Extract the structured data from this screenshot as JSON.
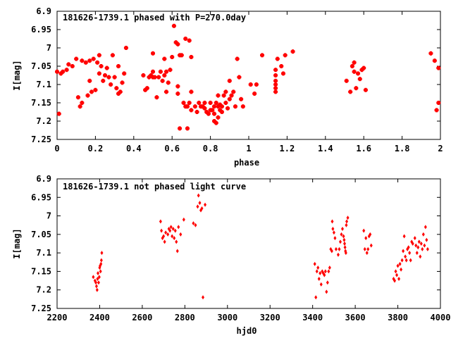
{
  "chart_data": [
    {
      "type": "scatter",
      "title": "181626-1739.1 phased with P=270.0day",
      "xlabel": "phase",
      "ylabel": "I[mag]",
      "xlim": [
        0,
        2
      ],
      "ylim": [
        6.9,
        7.25
      ],
      "y_inverted": true,
      "grid": false,
      "color": "#ff0000",
      "x_ticks": [
        "0",
        "0.2",
        "0.4",
        "0.6",
        "0.8",
        "1",
        "1.2",
        "1.4",
        "1.6",
        "1.8",
        "2"
      ],
      "y_ticks": [
        "6.9",
        "6.95",
        "7",
        "7.05",
        "7.1",
        "7.15",
        "7.2",
        "7.25"
      ],
      "points": [
        [
          0.0,
          7.065
        ],
        [
          0.01,
          7.18
        ],
        [
          0.02,
          7.07
        ],
        [
          0.03,
          7.065
        ],
        [
          0.05,
          7.06
        ],
        [
          0.06,
          7.045
        ],
        [
          0.08,
          7.05
        ],
        [
          0.1,
          7.03
        ],
        [
          0.11,
          7.135
        ],
        [
          0.12,
          7.16
        ],
        [
          0.13,
          7.15
        ],
        [
          0.13,
          7.035
        ],
        [
          0.15,
          7.04
        ],
        [
          0.16,
          7.13
        ],
        [
          0.17,
          7.09
        ],
        [
          0.17,
          7.035
        ],
        [
          0.18,
          7.12
        ],
        [
          0.19,
          7.03
        ],
        [
          0.2,
          7.115
        ],
        [
          0.21,
          7.04
        ],
        [
          0.22,
          7.07
        ],
        [
          0.22,
          7.02
        ],
        [
          0.23,
          7.05
        ],
        [
          0.24,
          7.09
        ],
        [
          0.25,
          7.075
        ],
        [
          0.26,
          7.055
        ],
        [
          0.27,
          7.08
        ],
        [
          0.28,
          7.1
        ],
        [
          0.29,
          7.02
        ],
        [
          0.3,
          7.08
        ],
        [
          0.31,
          7.11
        ],
        [
          0.32,
          7.05
        ],
        [
          0.32,
          7.125
        ],
        [
          0.33,
          7.12
        ],
        [
          0.34,
          7.095
        ],
        [
          0.35,
          7.07
        ],
        [
          0.36,
          7.0
        ],
        [
          0.45,
          7.075
        ],
        [
          0.46,
          7.115
        ],
        [
          0.47,
          7.11
        ],
        [
          0.48,
          7.08
        ],
        [
          0.49,
          7.075
        ],
        [
          0.5,
          7.08
        ],
        [
          0.5,
          7.065
        ],
        [
          0.5,
          7.015
        ],
        [
          0.51,
          7.08
        ],
        [
          0.52,
          7.135
        ],
        [
          0.53,
          7.08
        ],
        [
          0.54,
          7.065
        ],
        [
          0.55,
          7.09
        ],
        [
          0.56,
          7.075
        ],
        [
          0.56,
          7.03
        ],
        [
          0.57,
          7.12
        ],
        [
          0.57,
          7.065
        ],
        [
          0.58,
          7.095
        ],
        [
          0.59,
          7.06
        ],
        [
          0.6,
          7.025
        ],
        [
          0.61,
          6.94
        ],
        [
          0.62,
          6.985
        ],
        [
          0.63,
          7.125
        ],
        [
          0.63,
          7.105
        ],
        [
          0.63,
          6.99
        ],
        [
          0.64,
          7.22
        ],
        [
          0.64,
          7.02
        ],
        [
          0.65,
          7.02
        ],
        [
          0.66,
          7.15
        ],
        [
          0.67,
          7.16
        ],
        [
          0.67,
          6.975
        ],
        [
          0.68,
          7.22
        ],
        [
          0.68,
          7.16
        ],
        [
          0.69,
          7.15
        ],
        [
          0.69,
          6.98
        ],
        [
          0.7,
          7.17
        ],
        [
          0.7,
          7.12
        ],
        [
          0.7,
          7.025
        ],
        [
          0.72,
          7.16
        ],
        [
          0.73,
          7.175
        ],
        [
          0.74,
          7.15
        ],
        [
          0.75,
          7.16
        ],
        [
          0.76,
          7.16
        ],
        [
          0.77,
          7.165
        ],
        [
          0.77,
          7.15
        ],
        [
          0.78,
          7.175
        ],
        [
          0.79,
          7.18
        ],
        [
          0.8,
          7.15
        ],
        [
          0.8,
          7.17
        ],
        [
          0.81,
          7.17
        ],
        [
          0.82,
          7.18
        ],
        [
          0.82,
          7.2
        ],
        [
          0.82,
          7.16
        ],
        [
          0.83,
          7.205
        ],
        [
          0.83,
          7.15
        ],
        [
          0.84,
          7.19
        ],
        [
          0.84,
          7.16
        ],
        [
          0.84,
          7.13
        ],
        [
          0.85,
          7.17
        ],
        [
          0.85,
          7.155
        ],
        [
          0.86,
          7.16
        ],
        [
          0.86,
          7.175
        ],
        [
          0.87,
          7.13
        ],
        [
          0.88,
          7.15
        ],
        [
          0.88,
          7.12
        ],
        [
          0.89,
          7.165
        ],
        [
          0.9,
          7.14
        ],
        [
          0.9,
          7.09
        ],
        [
          0.91,
          7.13
        ],
        [
          0.92,
          7.12
        ],
        [
          0.93,
          7.16
        ],
        [
          0.94,
          7.03
        ],
        [
          0.95,
          7.08
        ],
        [
          0.96,
          7.14
        ],
        [
          0.97,
          7.16
        ],
        [
          1.01,
          7.1
        ],
        [
          1.03,
          7.125
        ],
        [
          1.04,
          7.1
        ],
        [
          1.07,
          7.02
        ],
        [
          1.14,
          7.06
        ],
        [
          1.14,
          7.075
        ],
        [
          1.14,
          7.09
        ],
        [
          1.14,
          7.1
        ],
        [
          1.14,
          7.11
        ],
        [
          1.14,
          7.12
        ],
        [
          1.15,
          7.03
        ],
        [
          1.17,
          7.05
        ],
        [
          1.18,
          7.07
        ],
        [
          1.19,
          7.02
        ],
        [
          1.23,
          7.01
        ],
        [
          1.51,
          7.09
        ],
        [
          1.53,
          7.12
        ],
        [
          1.54,
          7.05
        ],
        [
          1.55,
          7.065
        ],
        [
          1.55,
          7.04
        ],
        [
          1.56,
          7.11
        ],
        [
          1.57,
          7.07
        ],
        [
          1.58,
          7.085
        ],
        [
          1.59,
          7.06
        ],
        [
          1.6,
          7.055
        ],
        [
          1.61,
          7.115
        ],
        [
          1.95,
          7.015
        ],
        [
          1.97,
          7.035
        ],
        [
          1.98,
          7.17
        ],
        [
          1.99,
          7.055
        ],
        [
          1.99,
          7.15
        ]
      ]
    },
    {
      "type": "scatter",
      "title": "181626-1739.1 not phased light curve",
      "xlabel": "hjd0",
      "ylabel": "I[mag]",
      "xlim": [
        2200,
        4000
      ],
      "ylim": [
        6.9,
        7.25
      ],
      "y_inverted": true,
      "grid": false,
      "color": "#ff0000",
      "x_ticks": [
        "2200",
        "2400",
        "2600",
        "2800",
        "3000",
        "3200",
        "3400",
        "3600",
        "3800",
        "4000"
      ],
      "y_ticks": [
        "6.9",
        "6.95",
        "7",
        "7.05",
        "7.1",
        "7.15",
        "7.2",
        "7.25"
      ],
      "points": [
        [
          2370,
          7.165
        ],
        [
          2378,
          7.175
        ],
        [
          2382,
          7.18
        ],
        [
          2385,
          7.19
        ],
        [
          2388,
          7.2
        ],
        [
          2390,
          7.17
        ],
        [
          2392,
          7.155
        ],
        [
          2395,
          7.18
        ],
        [
          2398,
          7.165
        ],
        [
          2400,
          7.14
        ],
        [
          2402,
          7.135
        ],
        [
          2404,
          7.15
        ],
        [
          2406,
          7.13
        ],
        [
          2408,
          7.12
        ],
        [
          2410,
          7.1
        ],
        [
          2686,
          7.015
        ],
        [
          2690,
          7.04
        ],
        [
          2695,
          7.06
        ],
        [
          2700,
          7.055
        ],
        [
          2705,
          7.07
        ],
        [
          2710,
          7.045
        ],
        [
          2720,
          7.05
        ],
        [
          2725,
          7.035
        ],
        [
          2730,
          7.04
        ],
        [
          2735,
          7.03
        ],
        [
          2740,
          7.055
        ],
        [
          2745,
          7.035
        ],
        [
          2750,
          7.06
        ],
        [
          2755,
          7.04
        ],
        [
          2760,
          7.07
        ],
        [
          2765,
          7.095
        ],
        [
          2770,
          7.03
        ],
        [
          2780,
          7.05
        ],
        [
          2795,
          7.01
        ],
        [
          2840,
          7.02
        ],
        [
          2850,
          7.025
        ],
        [
          2860,
          6.975
        ],
        [
          2864,
          6.945
        ],
        [
          2870,
          6.965
        ],
        [
          2875,
          6.985
        ],
        [
          2880,
          6.98
        ],
        [
          2885,
          7.22
        ],
        [
          2895,
          6.97
        ],
        [
          3410,
          7.13
        ],
        [
          3415,
          7.22
        ],
        [
          3420,
          7.15
        ],
        [
          3425,
          7.14
        ],
        [
          3430,
          7.17
        ],
        [
          3435,
          7.155
        ],
        [
          3440,
          7.185
        ],
        [
          3445,
          7.15
        ],
        [
          3450,
          7.155
        ],
        [
          3455,
          7.16
        ],
        [
          3460,
          7.15
        ],
        [
          3465,
          7.205
        ],
        [
          3470,
          7.18
        ],
        [
          3475,
          7.15
        ],
        [
          3480,
          7.14
        ],
        [
          3485,
          7.09
        ],
        [
          3490,
          7.095
        ],
        [
          3492,
          7.015
        ],
        [
          3495,
          7.035
        ],
        [
          3500,
          7.045
        ],
        [
          3505,
          7.06
        ],
        [
          3510,
          7.09
        ],
        [
          3520,
          7.105
        ],
        [
          3525,
          7.09
        ],
        [
          3530,
          7.07
        ],
        [
          3535,
          7.05
        ],
        [
          3540,
          7.035
        ],
        [
          3545,
          7.055
        ],
        [
          3548,
          7.065
        ],
        [
          3550,
          7.075
        ],
        [
          3552,
          7.085
        ],
        [
          3554,
          7.095
        ],
        [
          3556,
          7.1
        ],
        [
          3558,
          7.025
        ],
        [
          3560,
          7.015
        ],
        [
          3565,
          7.005
        ],
        [
          3640,
          7.04
        ],
        [
          3645,
          7.09
        ],
        [
          3650,
          7.06
        ],
        [
          3655,
          7.1
        ],
        [
          3660,
          7.09
        ],
        [
          3665,
          7.055
        ],
        [
          3670,
          7.05
        ],
        [
          3675,
          7.08
        ],
        [
          3780,
          7.17
        ],
        [
          3785,
          7.175
        ],
        [
          3790,
          7.15
        ],
        [
          3795,
          7.16
        ],
        [
          3800,
          7.135
        ],
        [
          3805,
          7.17
        ],
        [
          3810,
          7.13
        ],
        [
          3815,
          7.145
        ],
        [
          3820,
          7.12
        ],
        [
          3825,
          7.095
        ],
        [
          3830,
          7.055
        ],
        [
          3835,
          7.11
        ],
        [
          3840,
          7.12
        ],
        [
          3845,
          7.09
        ],
        [
          3850,
          7.085
        ],
        [
          3855,
          7.1
        ],
        [
          3860,
          7.12
        ],
        [
          3865,
          7.07
        ],
        [
          3870,
          7.075
        ],
        [
          3880,
          7.06
        ],
        [
          3885,
          7.08
        ],
        [
          3890,
          7.1
        ],
        [
          3895,
          7.085
        ],
        [
          3900,
          7.07
        ],
        [
          3905,
          7.11
        ],
        [
          3910,
          7.075
        ],
        [
          3915,
          7.09
        ],
        [
          3920,
          7.05
        ],
        [
          3925,
          7.08
        ],
        [
          3930,
          7.03
        ],
        [
          3935,
          7.065
        ],
        [
          3940,
          7.09
        ]
      ]
    }
  ]
}
